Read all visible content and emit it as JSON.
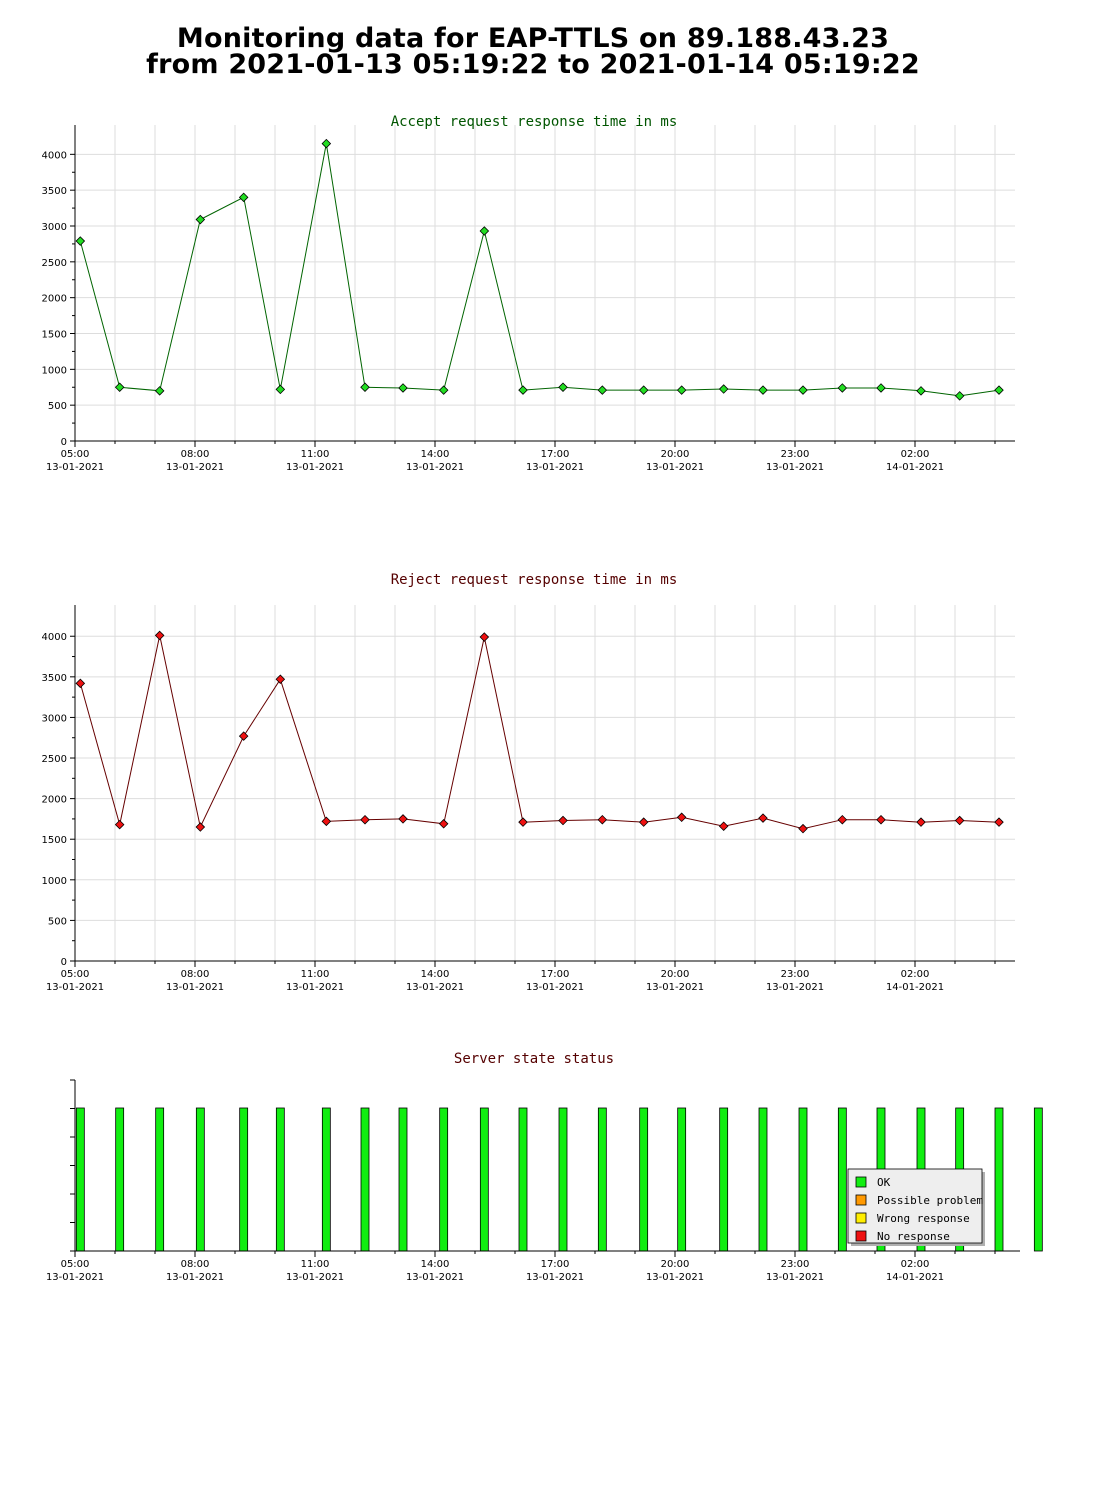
{
  "page": {
    "title_line1": "Monitoring data for EAP-TTLS on 89.188.43.23",
    "title_line2": "from 2021-01-13 05:19:22 to 2021-01-14 05:19:22"
  },
  "colors": {
    "accept_title": "#005500",
    "reject_title": "#550000",
    "status_title": "#550000",
    "accept_line": "#006400",
    "accept_marker": "#22dd22",
    "reject_line": "#660000",
    "reject_marker": "#ee1111",
    "ok": "#11ee11",
    "possible_problem": "#ff9900",
    "wrong_response": "#ffee00",
    "no_response": "#ee1111",
    "grid": "#dddddd"
  },
  "chart_data": [
    {
      "type": "line",
      "title": "Accept request response time in ms",
      "xlabel": "",
      "ylabel": "",
      "ylim": [
        0,
        4200
      ],
      "yticks": [
        0,
        500,
        1000,
        1500,
        2000,
        2500,
        3000,
        3500,
        4000
      ],
      "x_ticks": [
        {
          "time": "05:00",
          "date": "13-01-2021"
        },
        {
          "time": "08:00",
          "date": "13-01-2021"
        },
        {
          "time": "11:00",
          "date": "13-01-2021"
        },
        {
          "time": "14:00",
          "date": "13-01-2021"
        },
        {
          "time": "17:00",
          "date": "13-01-2021"
        },
        {
          "time": "20:00",
          "date": "13-01-2021"
        },
        {
          "time": "23:00",
          "date": "13-01-2021"
        },
        {
          "time": "02:00",
          "date": "14-01-2021"
        }
      ],
      "xlim": [
        "2021-01-13 05:00",
        "2021-01-14 04:30"
      ],
      "grid": true,
      "x": [
        "2021-01-13 05:08",
        "2021-01-13 06:07",
        "2021-01-13 07:07",
        "2021-01-13 08:08",
        "2021-01-13 09:13",
        "2021-01-13 10:08",
        "2021-01-13 11:17",
        "2021-01-13 12:15",
        "2021-01-13 13:12",
        "2021-01-13 14:13",
        "2021-01-13 15:14",
        "2021-01-13 16:12",
        "2021-01-13 17:12",
        "2021-01-13 18:11",
        "2021-01-13 19:13",
        "2021-01-13 20:10",
        "2021-01-13 21:13",
        "2021-01-13 22:12",
        "2021-01-13 23:12",
        "2021-01-14 00:11",
        "2021-01-14 01:09",
        "2021-01-14 02:09",
        "2021-01-14 03:07",
        "2021-01-14 04:06"
      ],
      "series": [
        {
          "values": [
            2790,
            750,
            700,
            3090,
            3400,
            720,
            4150,
            750,
            740,
            710,
            2930,
            710,
            750,
            710,
            710,
            710,
            725,
            710,
            710,
            740,
            740,
            700,
            630,
            710
          ]
        }
      ]
    },
    {
      "type": "line",
      "title": "Reject request response time in ms",
      "xlabel": "",
      "ylabel": "",
      "ylim": [
        0,
        4200
      ],
      "yticks": [
        0,
        500,
        1000,
        1500,
        2000,
        2500,
        3000,
        3500,
        4000
      ],
      "x_ticks": [
        {
          "time": "05:00",
          "date": "13-01-2021"
        },
        {
          "time": "08:00",
          "date": "13-01-2021"
        },
        {
          "time": "11:00",
          "date": "13-01-2021"
        },
        {
          "time": "14:00",
          "date": "13-01-2021"
        },
        {
          "time": "17:00",
          "date": "13-01-2021"
        },
        {
          "time": "20:00",
          "date": "13-01-2021"
        },
        {
          "time": "23:00",
          "date": "13-01-2021"
        },
        {
          "time": "02:00",
          "date": "14-01-2021"
        }
      ],
      "xlim": [
        "2021-01-13 05:00",
        "2021-01-14 04:30"
      ],
      "grid": true,
      "x": [
        "2021-01-13 05:08",
        "2021-01-13 06:07",
        "2021-01-13 07:07",
        "2021-01-13 08:08",
        "2021-01-13 09:13",
        "2021-01-13 10:08",
        "2021-01-13 11:17",
        "2021-01-13 12:15",
        "2021-01-13 13:12",
        "2021-01-13 14:13",
        "2021-01-13 15:14",
        "2021-01-13 16:12",
        "2021-01-13 17:12",
        "2021-01-13 18:11",
        "2021-01-13 19:13",
        "2021-01-13 20:10",
        "2021-01-13 21:13",
        "2021-01-13 22:12",
        "2021-01-13 23:12",
        "2021-01-14 00:11",
        "2021-01-14 01:09",
        "2021-01-14 02:09",
        "2021-01-14 03:07",
        "2021-01-14 04:06"
      ],
      "series": [
        {
          "values": [
            3420,
            1680,
            4010,
            1650,
            2770,
            3470,
            1720,
            1740,
            1750,
            1690,
            3990,
            1710,
            1730,
            1740,
            1710,
            1770,
            1660,
            1760,
            1630,
            1740,
            1740,
            1710,
            1730,
            1710
          ]
        }
      ]
    },
    {
      "type": "bar",
      "title": "Server state status",
      "xlabel": "",
      "ylabel": "",
      "x_ticks": [
        {
          "time": "05:00",
          "date": "13-01-2021"
        },
        {
          "time": "08:00",
          "date": "13-01-2021"
        },
        {
          "time": "11:00",
          "date": "13-01-2021"
        },
        {
          "time": "14:00",
          "date": "13-01-2021"
        },
        {
          "time": "17:00",
          "date": "13-01-2021"
        },
        {
          "time": "20:00",
          "date": "13-01-2021"
        },
        {
          "time": "23:00",
          "date": "13-01-2021"
        },
        {
          "time": "02:00",
          "date": "14-01-2021"
        }
      ],
      "xlim": [
        "2021-01-13 05:00",
        "2021-01-14 04:30"
      ],
      "x": [
        "2021-01-13 05:08",
        "2021-01-13 06:07",
        "2021-01-13 07:07",
        "2021-01-13 08:08",
        "2021-01-13 09:13",
        "2021-01-13 10:08",
        "2021-01-13 11:17",
        "2021-01-13 12:15",
        "2021-01-13 13:12",
        "2021-01-13 14:13",
        "2021-01-13 15:14",
        "2021-01-13 16:12",
        "2021-01-13 17:12",
        "2021-01-13 18:11",
        "2021-01-13 19:13",
        "2021-01-13 20:10",
        "2021-01-13 21:13",
        "2021-01-13 22:12",
        "2021-01-13 23:12",
        "2021-01-14 00:11",
        "2021-01-14 01:09",
        "2021-01-14 02:09",
        "2021-01-14 03:07",
        "2021-01-14 04:06",
        "2021-01-14 05:05"
      ],
      "states": [
        "OK",
        "OK",
        "OK",
        "OK",
        "OK",
        "OK",
        "OK",
        "OK",
        "OK",
        "OK",
        "OK",
        "OK",
        "OK",
        "OK",
        "OK",
        "OK",
        "OK",
        "OK",
        "OK",
        "OK",
        "OK",
        "OK",
        "OK",
        "OK",
        "OK"
      ],
      "legend": {
        "placement": "bottom-right",
        "items": [
          {
            "label": "OK",
            "color": "#11ee11"
          },
          {
            "label": "Possible problem",
            "color": "#ff9900"
          },
          {
            "label": "Wrong response",
            "color": "#ffee00"
          },
          {
            "label": "No response",
            "color": "#ee1111"
          }
        ]
      }
    }
  ]
}
